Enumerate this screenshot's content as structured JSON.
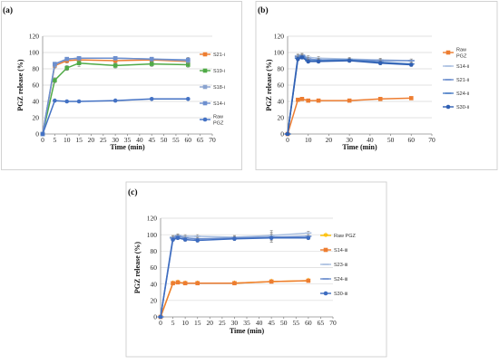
{
  "chart_data": [
    {
      "panel_label": "(a)",
      "type": "line",
      "xlabel": "Time (min)",
      "ylabel": "PGZ release (%)",
      "xlim": [
        0,
        70
      ],
      "ylim": [
        0,
        120
      ],
      "xticks": [
        0,
        5,
        10,
        15,
        20,
        25,
        30,
        35,
        40,
        45,
        50,
        55,
        60,
        65,
        70
      ],
      "yticks": [
        0,
        20,
        40,
        60,
        80,
        100,
        120
      ],
      "grid": true,
      "legend_position": "right",
      "x": [
        0,
        5,
        10,
        15,
        30,
        45,
        60
      ],
      "series": [
        {
          "name": "S21-i",
          "color": "#ed7d31",
          "marker": "square",
          "values": [
            0,
            84,
            90,
            91,
            90,
            91,
            89
          ],
          "errors": [
            0,
            3,
            3,
            3,
            3,
            3,
            4
          ]
        },
        {
          "name": "S19-i",
          "color": "#4faa46",
          "marker": "square",
          "values": [
            0,
            66,
            81,
            87,
            84,
            86,
            85
          ],
          "errors": [
            0,
            3,
            3,
            4,
            3,
            3,
            3
          ]
        },
        {
          "name": "S18-i",
          "color": "#8aa3cf",
          "marker": "square",
          "values": [
            0,
            85,
            92,
            93,
            93,
            92,
            90
          ],
          "errors": [
            0,
            3,
            2,
            2,
            2,
            2,
            4
          ]
        },
        {
          "name": "S14-i",
          "color": "#6d8fce",
          "marker": "square",
          "values": [
            0,
            86,
            92,
            93,
            93,
            92,
            91
          ],
          "errors": [
            0,
            2,
            2,
            2,
            2,
            2,
            2
          ]
        },
        {
          "name": [
            "Raw",
            "PGZ"
          ],
          "color": "#4472c4",
          "marker": "circle",
          "values": [
            0,
            41,
            40,
            40,
            41,
            43,
            43
          ],
          "errors": [
            0,
            1,
            1,
            1,
            1,
            1,
            1
          ]
        }
      ]
    },
    {
      "panel_label": "(b)",
      "type": "line",
      "xlabel": "Time (min)",
      "ylabel": "PGZ release (%)",
      "xlim": [
        0,
        70
      ],
      "ylim": [
        0,
        120
      ],
      "xticks": [
        0,
        10,
        20,
        30,
        40,
        50,
        60,
        70
      ],
      "yticks": [
        0,
        20,
        40,
        60,
        80,
        100,
        120
      ],
      "grid": true,
      "legend_position": "right",
      "x": [
        0,
        5,
        7,
        10,
        15,
        30,
        45,
        60
      ],
      "series": [
        {
          "name": [
            "Raw",
            "PGZ"
          ],
          "color": "#ed7d31",
          "marker": "square",
          "values": [
            0,
            42,
            43,
            41,
            41,
            41,
            43,
            44
          ],
          "errors": [
            0,
            1,
            1,
            1,
            1,
            1,
            1,
            1
          ]
        },
        {
          "name": "S14-ii",
          "color": "#a9bfe0",
          "marker": "dash",
          "values": [
            0,
            96,
            97,
            94,
            93,
            92,
            91,
            90
          ],
          "errors": [
            0,
            2,
            2,
            2,
            2,
            2,
            2,
            2
          ]
        },
        {
          "name": "S21-ii",
          "color": "#6d8fce",
          "marker": "dash",
          "values": [
            0,
            95,
            96,
            92,
            91,
            91,
            90,
            90
          ],
          "errors": [
            0,
            2,
            2,
            2,
            2,
            2,
            2,
            2
          ]
        },
        {
          "name": "S24-ii",
          "color": "#4f81c7",
          "marker": "dash",
          "values": [
            0,
            93,
            95,
            90,
            90,
            91,
            88,
            86
          ],
          "errors": [
            0,
            2,
            2,
            2,
            2,
            2,
            2,
            2
          ]
        },
        {
          "name": "S30-ii",
          "color": "#2f5fb3",
          "marker": "circle",
          "values": [
            0,
            92,
            94,
            89,
            89,
            90,
            87,
            85
          ],
          "errors": [
            0,
            2,
            2,
            2,
            2,
            2,
            2,
            2
          ]
        }
      ]
    },
    {
      "panel_label": "(c)",
      "type": "line",
      "xlabel": "Time (min)",
      "ylabel": "PGZ release (%)",
      "xlim": [
        0,
        70
      ],
      "ylim": [
        0,
        120
      ],
      "xticks": [
        0,
        5,
        10,
        15,
        20,
        25,
        30,
        35,
        40,
        45,
        50,
        55,
        60,
        65,
        70
      ],
      "yticks": [
        0,
        20,
        40,
        60,
        80,
        100,
        120
      ],
      "grid": true,
      "legend_position": "right",
      "x": [
        0,
        5,
        7,
        10,
        15,
        30,
        45,
        60
      ],
      "series": [
        {
          "name": "Raw PGZ",
          "color": "#ffc000",
          "marker": "star",
          "values": [
            0,
            41,
            42,
            41,
            41,
            41,
            43,
            44
          ],
          "errors": [
            0,
            1,
            1,
            1,
            1,
            1,
            1,
            1
          ]
        },
        {
          "name": "S14-iii",
          "color": "#ed7d31",
          "marker": "square",
          "values": [
            0,
            41,
            42,
            41,
            41,
            41,
            43,
            44
          ],
          "errors": [
            0,
            1,
            1,
            1,
            1,
            1,
            1,
            1
          ]
        },
        {
          "name": "S23-iii",
          "color": "#a9bfe0",
          "marker": "dash",
          "values": [
            0,
            97,
            99,
            98,
            98,
            97,
            99,
            102
          ],
          "errors": [
            0,
            2,
            2,
            2,
            2,
            2,
            6,
            2
          ]
        },
        {
          "name": "S24-iii",
          "color": "#6d8fce",
          "marker": "dash",
          "values": [
            0,
            96,
            98,
            96,
            95,
            96,
            97,
            98
          ],
          "errors": [
            0,
            2,
            2,
            2,
            2,
            2,
            6,
            2
          ]
        },
        {
          "name": "S30-iii",
          "color": "#3d6cc0",
          "marker": "circle",
          "values": [
            0,
            94,
            96,
            94,
            93,
            95,
            96,
            96
          ],
          "errors": [
            0,
            2,
            2,
            2,
            2,
            2,
            5,
            2
          ]
        }
      ]
    }
  ]
}
